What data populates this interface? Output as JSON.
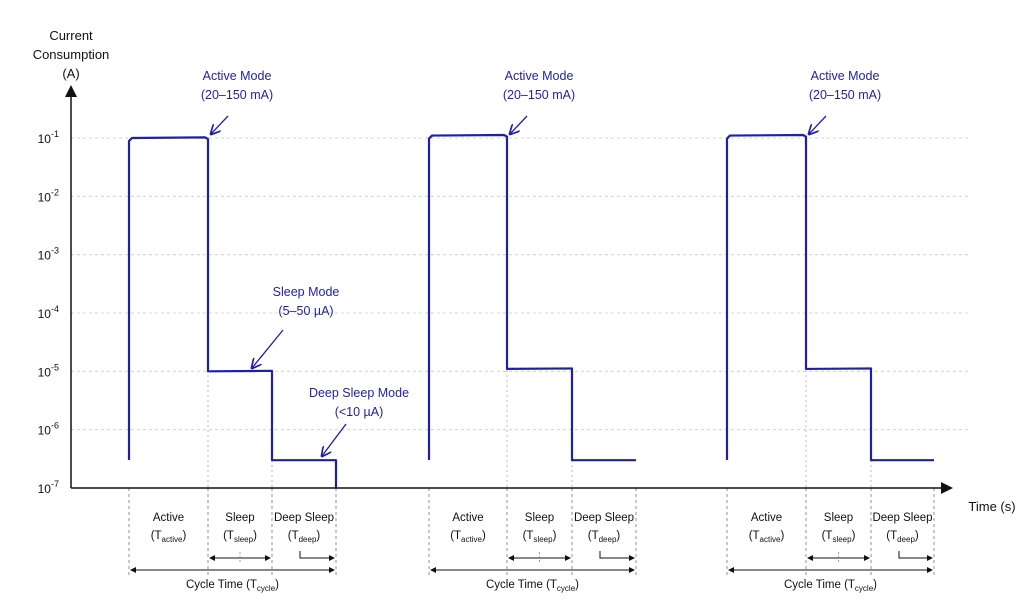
{
  "chart_data": {
    "type": "line",
    "ylabel_lines": [
      "Current",
      "Consumption",
      "(A)"
    ],
    "xlabel": "Time (s)",
    "y_scale": "log",
    "ylim": [
      1e-07,
      0.1
    ],
    "y_ticks": [
      {
        "base": "10",
        "exp": "-1",
        "value": 0.1
      },
      {
        "base": "10",
        "exp": "-2",
        "value": 0.01
      },
      {
        "base": "10",
        "exp": "-3",
        "value": 0.001
      },
      {
        "base": "10",
        "exp": "-4",
        "value": 0.0001
      },
      {
        "base": "10",
        "exp": "-5",
        "value": 1e-05
      },
      {
        "base": "10",
        "exp": "-6",
        "value": 1e-06
      },
      {
        "base": "10",
        "exp": "-7",
        "value": 1e-07
      }
    ],
    "grid": true,
    "series_color": "#1f1fa8",
    "cycles": [
      {
        "active_current": 0.1,
        "sleep_current": 1e-05,
        "deep_current": 3e-07
      },
      {
        "active_current": 0.11,
        "sleep_current": 1.1e-05,
        "deep_current": 3e-07
      },
      {
        "active_current": 0.11,
        "sleep_current": 1.1e-05,
        "deep_current": 3e-07
      }
    ],
    "annotations": {
      "active": [
        "Active Mode",
        "(20–150 mA)"
      ],
      "sleep": [
        "Sleep Mode",
        "(5–50 µA)"
      ],
      "deep": [
        "Deep Sleep Mode",
        "(<10 µA)"
      ]
    },
    "segment_labels": {
      "active": {
        "name": "Active",
        "sym": "T",
        "sub": "active"
      },
      "sleep": {
        "name": "Sleep",
        "sym": "T",
        "sub": "sleep"
      },
      "deep": {
        "name": "Deep Sleep",
        "sym": "T",
        "sub": "deep"
      },
      "cycle": {
        "name": "Cycle Time",
        "sym": "T",
        "sub": "cycle"
      }
    }
  }
}
